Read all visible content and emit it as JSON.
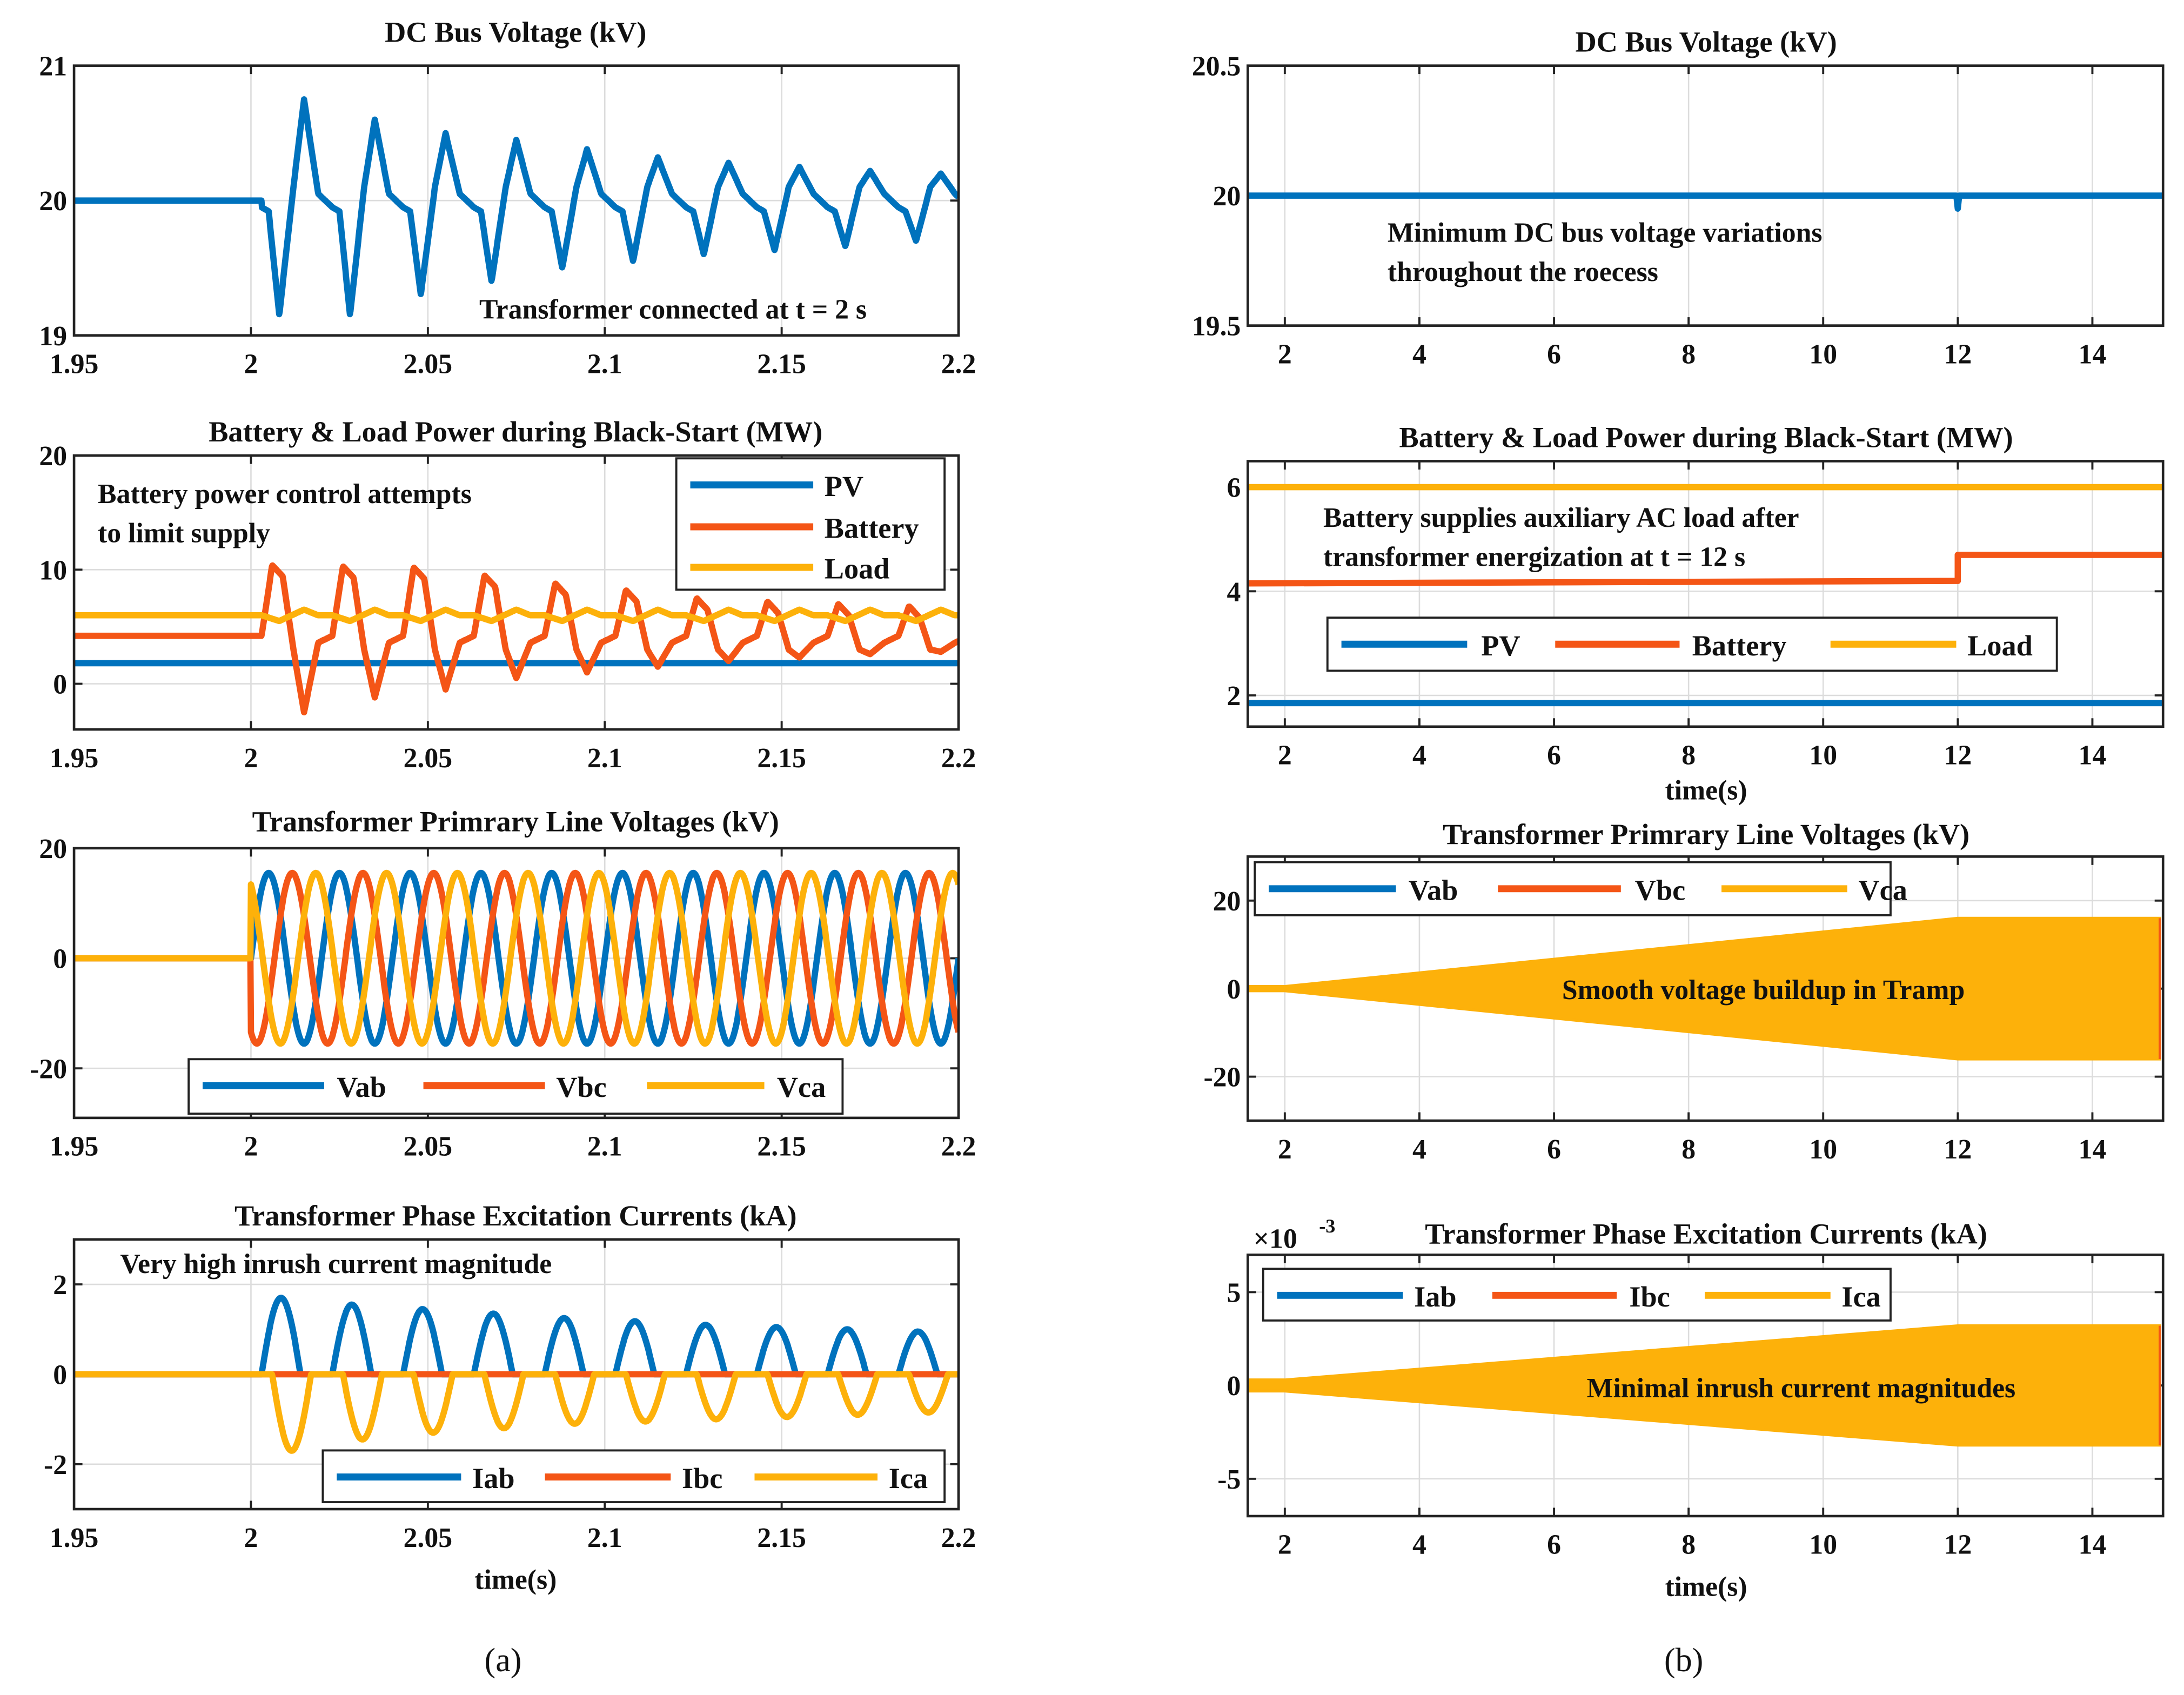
{
  "colors": {
    "blue": "#0072BD",
    "orange": "#F45516",
    "yellow": "#FDB10A"
  },
  "captions": {
    "a": "(a)",
    "b": "(b)"
  },
  "chart_data": [
    {
      "id": "a1",
      "type": "line",
      "title": "DC Bus Voltage (kV)",
      "xlim": [
        1.95,
        2.2
      ],
      "ylim": [
        19,
        21
      ],
      "xticks": [
        "1.95",
        "2",
        "2.05",
        "2.1",
        "2.15",
        "2.2"
      ],
      "xtick_values": [
        1.95,
        2,
        2.05,
        2.1,
        2.15,
        2.2
      ],
      "yticks": [
        "19",
        "20",
        "21"
      ],
      "ytick_values": [
        19,
        20,
        21
      ],
      "xlabel": "",
      "grid": true,
      "annotations": [
        "Transformer connected at t = 2 s"
      ],
      "series": [
        {
          "name": "DC bus",
          "color": "blue",
          "baseline": 20,
          "event_time": 2.003,
          "period": 0.02,
          "dips": [
            19.15,
            19.15,
            19.3,
            19.4,
            19.5,
            19.55,
            19.6,
            19.63,
            19.66,
            19.7
          ],
          "peaks": [
            20.75,
            20.6,
            20.5,
            20.45,
            20.38,
            20.32,
            20.28,
            20.25,
            20.22,
            20.2
          ]
        }
      ]
    },
    {
      "id": "a2",
      "type": "line",
      "title": "Battery & Load Power during Black-Start (MW)",
      "xlim": [
        1.95,
        2.2
      ],
      "ylim": [
        -4,
        20
      ],
      "xticks": [
        "1.95",
        "2",
        "2.05",
        "2.1",
        "2.15",
        "2.2"
      ],
      "xtick_values": [
        1.95,
        2,
        2.05,
        2.1,
        2.15,
        2.2
      ],
      "yticks": [
        "0",
        "10",
        "20"
      ],
      "ytick_values": [
        0,
        10,
        20
      ],
      "xlabel": "",
      "grid": true,
      "annotations": [
        "Battery power control attempts",
        "to limit supply"
      ],
      "legend": [
        "PV",
        "Battery",
        "Load"
      ],
      "legend_position": "top-right",
      "series": [
        {
          "name": "PV",
          "color": "blue",
          "value": 1.8
        },
        {
          "name": "Battery",
          "color": "orange",
          "baseline": 4.2,
          "event_time": 2.003,
          "period": 0.02,
          "peaks": [
            10.4,
            10.3,
            10.2,
            9.5,
            8.8,
            8.2,
            7.5,
            7.2,
            7.0,
            6.8
          ],
          "dips": [
            -2.5,
            -1.2,
            -0.5,
            0.5,
            1.0,
            1.5,
            2.0,
            2.3,
            2.6,
            2.8
          ]
        },
        {
          "name": "Load",
          "color": "yellow",
          "baseline": 6.0,
          "bump_low": 5.5,
          "bump_high": 6.5
        }
      ]
    },
    {
      "id": "a3",
      "type": "line",
      "title": "Transformer Primrary Line Voltages (kV)",
      "xlim": [
        1.95,
        2.2
      ],
      "ylim": [
        -29,
        20
      ],
      "xticks": [
        "1.95",
        "2",
        "2.05",
        "2.1",
        "2.15",
        "2.2"
      ],
      "xtick_values": [
        1.95,
        2,
        2.05,
        2.1,
        2.15,
        2.2
      ],
      "yticks": [
        "-20",
        "0",
        "20"
      ],
      "ytick_values": [
        -20,
        0,
        20
      ],
      "xlabel": "",
      "grid": true,
      "legend": [
        "Vab",
        "Vbc",
        "Vca"
      ],
      "legend_position": "bottom",
      "series": [
        {
          "name": "Vab",
          "color": "blue",
          "amplitude": 15.5,
          "frequency_hz": 50,
          "phase_deg": 0,
          "start": 2
        },
        {
          "name": "Vbc",
          "color": "orange",
          "amplitude": 15.5,
          "frequency_hz": 50,
          "phase_deg": -120,
          "start": 2
        },
        {
          "name": "Vca",
          "color": "yellow",
          "amplitude": 15.5,
          "frequency_hz": 50,
          "phase_deg": 120,
          "start": 2
        }
      ]
    },
    {
      "id": "a4",
      "type": "line",
      "title": "Transformer Phase Excitation Currents (kA)",
      "xlim": [
        1.95,
        2.2
      ],
      "ylim": [
        -3,
        3
      ],
      "xticks": [
        "1.95",
        "2",
        "2.05",
        "2.1",
        "2.15",
        "2.2"
      ],
      "xtick_values": [
        1.95,
        2,
        2.05,
        2.1,
        2.15,
        2.2
      ],
      "yticks": [
        "-2",
        "0",
        "2"
      ],
      "ytick_values": [
        -2,
        0,
        2
      ],
      "xlabel": "time(s)",
      "grid": true,
      "annotations": [
        "Very high inrush current magnitude"
      ],
      "legend": [
        "Iab",
        "Ibc",
        "Ica"
      ],
      "legend_position": "bottom-right",
      "series": [
        {
          "name": "Iab",
          "color": "blue",
          "pulse_start": 2.003,
          "period": 0.02,
          "pulse_width": 0.011,
          "peaks": [
            1.7,
            1.55,
            1.45,
            1.35,
            1.25,
            1.18,
            1.1,
            1.05,
            1.0,
            0.95
          ]
        },
        {
          "name": "Ibc",
          "color": "orange",
          "value": 0
        },
        {
          "name": "Ica",
          "color": "yellow",
          "pulse_start": 2.006,
          "period": 0.02,
          "pulse_width": 0.011,
          "peaks": [
            -1.7,
            -1.45,
            -1.3,
            -1.2,
            -1.1,
            -1.05,
            -1.0,
            -0.95,
            -0.9,
            -0.85
          ]
        }
      ]
    },
    {
      "id": "b1",
      "type": "line",
      "title": "DC Bus Voltage (kV)",
      "xlim": [
        1.45,
        15.05
      ],
      "ylim": [
        19.5,
        20.5
      ],
      "xticks": [
        "2",
        "4",
        "6",
        "8",
        "10",
        "12",
        "14"
      ],
      "xtick_values": [
        2,
        4,
        6,
        8,
        10,
        12,
        14
      ],
      "yticks": [
        "19.5",
        "20",
        "20.5"
      ],
      "ytick_values": [
        19.5,
        20,
        20.5
      ],
      "xlabel": "",
      "grid": true,
      "annotations": [
        "Minimum DC bus voltage variations",
        "throughout the roecess"
      ],
      "series": [
        {
          "name": "DC bus",
          "color": "blue",
          "x": [
            1.45,
            11.98,
            12.0,
            12.02,
            15.05
          ],
          "y": [
            20,
            20,
            19.95,
            20,
            20
          ]
        }
      ]
    },
    {
      "id": "b2",
      "type": "line",
      "title": "Battery & Load Power during Black-Start (MW)",
      "xlim": [
        1.45,
        15.05
      ],
      "ylim": [
        1.4,
        6.5
      ],
      "xticks": [
        "2",
        "4",
        "6",
        "8",
        "10",
        "12",
        "14"
      ],
      "xtick_values": [
        2,
        4,
        6,
        8,
        10,
        12,
        14
      ],
      "yticks": [
        "2",
        "4",
        "6"
      ],
      "ytick_values": [
        2,
        4,
        6
      ],
      "xlabel": "time(s)",
      "grid": true,
      "annotations": [
        "Battery supplies auxiliary AC load after",
        "transformer energization at t = 12 s"
      ],
      "legend": [
        "PV",
        "Battery",
        "Load"
      ],
      "legend_position": "bottom",
      "series": [
        {
          "name": "PV",
          "color": "blue",
          "x": [
            1.45,
            15.05
          ],
          "y": [
            1.85,
            1.85
          ]
        },
        {
          "name": "Battery",
          "color": "orange",
          "x": [
            1.45,
            12,
            12,
            15.05
          ],
          "y": [
            4.15,
            4.2,
            4.7,
            4.7
          ]
        },
        {
          "name": "Load",
          "color": "yellow",
          "x": [
            1.45,
            15.05
          ],
          "y": [
            6,
            6
          ]
        }
      ]
    },
    {
      "id": "b3",
      "type": "area",
      "title": "Transformer Primrary Line Voltages (kV)",
      "xlim": [
        1.45,
        15.05
      ],
      "ylim": [
        -30,
        30
      ],
      "xticks": [
        "2",
        "4",
        "6",
        "8",
        "10",
        "12",
        "14"
      ],
      "xtick_values": [
        2,
        4,
        6,
        8,
        10,
        12,
        14
      ],
      "yticks": [
        "-20",
        "0",
        "20"
      ],
      "ytick_values": [
        -20,
        0,
        20
      ],
      "xlabel": "",
      "grid": true,
      "annotations": [
        "Smooth voltage buildup in Tramp"
      ],
      "legend": [
        "Vab",
        "Vbc",
        "Vca"
      ],
      "legend_position": "top-left",
      "envelope": {
        "x": [
          1.45,
          2,
          12,
          15
        ],
        "amplitude": [
          0.5,
          0.5,
          16,
          16
        ]
      }
    },
    {
      "id": "b4",
      "type": "area",
      "title": "Transformer Phase Excitation Currents (kA)",
      "xlim": [
        1.45,
        15.05
      ],
      "ylim": [
        -7,
        7
      ],
      "y_multiplier": "×10",
      "y_exponent": "-3",
      "xticks": [
        "2",
        "4",
        "6",
        "8",
        "10",
        "12",
        "14"
      ],
      "xtick_values": [
        2,
        4,
        6,
        8,
        10,
        12,
        14
      ],
      "yticks": [
        "-5",
        "0",
        "5"
      ],
      "ytick_values": [
        -5,
        0,
        5
      ],
      "xlabel": "time(s)",
      "grid": true,
      "annotations": [
        "Minimal inrush current magnitudes"
      ],
      "legend": [
        "Iab",
        "Ibc",
        "Ica"
      ],
      "legend_position": "top-left",
      "envelope": {
        "x": [
          1.45,
          2,
          12,
          15
        ],
        "amplitude": [
          0.3,
          0.3,
          3.2,
          3.2
        ]
      }
    }
  ]
}
